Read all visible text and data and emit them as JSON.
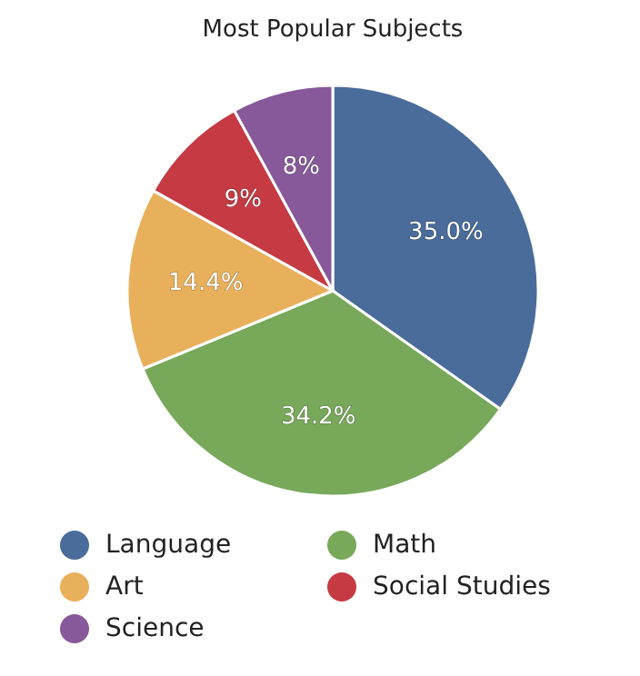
{
  "chart_data": {
    "type": "pie",
    "title": "Most Popular Subjects",
    "categories": [
      "Language",
      "Math",
      "Art",
      "Social Studies",
      "Science"
    ],
    "values": [
      35.0,
      34.2,
      14.4,
      9,
      8
    ],
    "value_labels": [
      "35.0%",
      "34.2%",
      "14.4%",
      "9%",
      "8%"
    ],
    "colors": [
      "#4a6c9b",
      "#78a85a",
      "#e9b05c",
      "#c53a43",
      "#87599a"
    ],
    "legend": "bottom"
  }
}
